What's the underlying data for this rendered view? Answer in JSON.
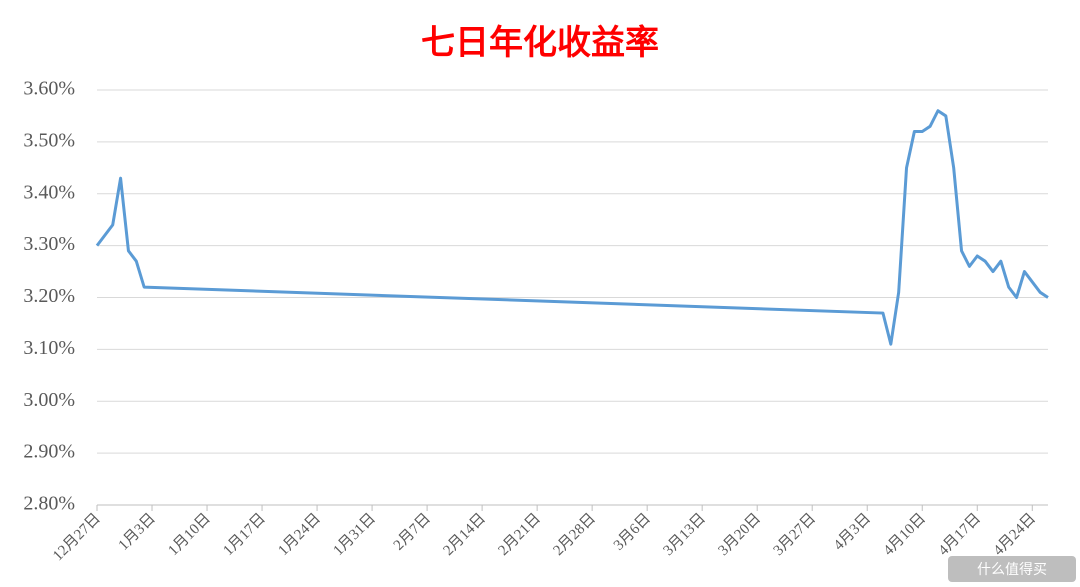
{
  "chart_data": {
    "type": "line",
    "title": "七日年化收益率",
    "x": [
      0,
      1,
      2,
      3,
      4,
      5,
      6,
      100,
      101,
      102,
      103,
      104,
      105,
      106,
      107,
      108,
      109,
      110,
      111,
      112,
      113,
      114,
      115,
      116,
      117,
      118,
      119,
      120,
      121
    ],
    "series": [
      {
        "color": "#5b9bd5",
        "values": [
          3.3,
          3.32,
          3.34,
          3.43,
          3.29,
          3.27,
          3.22,
          3.17,
          3.11,
          3.21,
          3.45,
          3.52,
          3.52,
          3.53,
          3.56,
          3.55,
          3.45,
          3.29,
          3.26,
          3.28,
          3.27,
          3.25,
          3.27,
          3.22,
          3.2,
          3.25,
          3.23,
          3.21,
          3.2
        ]
      }
    ],
    "xlim": [
      0,
      121
    ],
    "xticks": [
      {
        "value": 0,
        "label": "12月27日"
      },
      {
        "value": 7,
        "label": "1月3日"
      },
      {
        "value": 14,
        "label": "1月10日"
      },
      {
        "value": 21,
        "label": "1月17日"
      },
      {
        "value": 28,
        "label": "1月24日"
      },
      {
        "value": 35,
        "label": "1月31日"
      },
      {
        "value": 42,
        "label": "2月7日"
      },
      {
        "value": 49,
        "label": "2月14日"
      },
      {
        "value": 56,
        "label": "2月21日"
      },
      {
        "value": 63,
        "label": "2月28日"
      },
      {
        "value": 70,
        "label": "3月6日"
      },
      {
        "value": 77,
        "label": "3月13日"
      },
      {
        "value": 84,
        "label": "3月20日"
      },
      {
        "value": 91,
        "label": "3月27日"
      },
      {
        "value": 98,
        "label": "4月3日"
      },
      {
        "value": 105,
        "label": "4月10日"
      },
      {
        "value": 112,
        "label": "4月17日"
      },
      {
        "value": 119,
        "label": "4月24日"
      }
    ],
    "ylim": [
      2.8,
      3.6
    ],
    "yticks": [
      {
        "value": 2.8,
        "label": "2.80%"
      },
      {
        "value": 2.9,
        "label": "2.90%"
      },
      {
        "value": 3.0,
        "label": "3.00%"
      },
      {
        "value": 3.1,
        "label": "3.10%"
      },
      {
        "value": 3.2,
        "label": "3.20%"
      },
      {
        "value": 3.3,
        "label": "3.30%"
      },
      {
        "value": 3.4,
        "label": "3.40%"
      },
      {
        "value": 3.5,
        "label": "3.50%"
      },
      {
        "value": 3.6,
        "label": "3.60%"
      }
    ],
    "grid": true,
    "watermark": "什么值得买"
  }
}
